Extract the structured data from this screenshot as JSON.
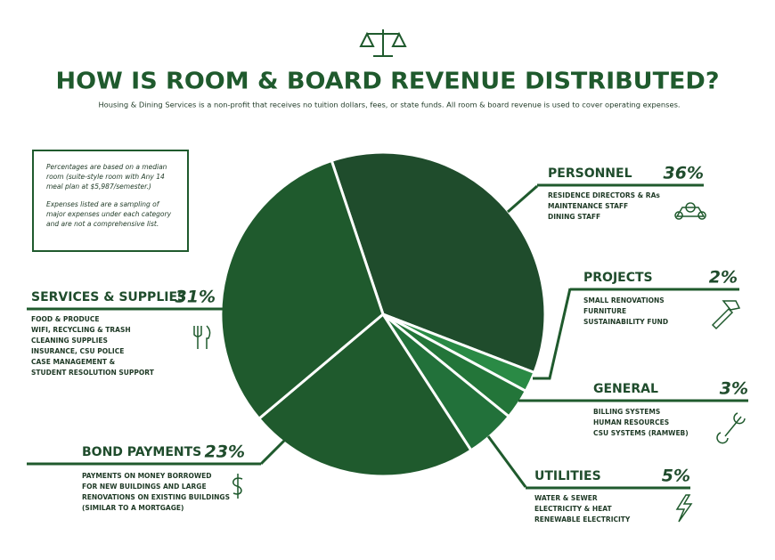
{
  "chart_data": {
    "type": "pie",
    "title": "HOW IS ROOM & BOARD REVENUE DISTRIBUTED?",
    "subtitle": "Housing & Dining Services is a non-profit that receives no tuition dollars, fees, or state funds. All room & board revenue is used to cover operating expenses.",
    "note": [
      "Percentages are based on a median room (suite-style room with Any 14 meal plan at $5,987/semester.)",
      "Expenses listed are a sampling of major expenses under each category and are not a comprehensive list."
    ],
    "categories": [
      "PERSONNEL",
      "PROJECTS",
      "GENERAL",
      "UTILITIES",
      "BOND PAYMENTS",
      "SERVICES & SUPPLIES"
    ],
    "values": [
      36,
      2,
      3,
      5,
      23,
      31
    ],
    "value_labels": [
      "36%",
      "2%",
      "3%",
      "5%",
      "23%",
      "31%"
    ],
    "colors": [
      "#1f4c2c",
      "#2a8a45",
      "#237539",
      "#22713a",
      "#1f5a2d",
      "#1f5a2d"
    ],
    "details": [
      [
        "RESIDENCE DIRECTORS & RAs",
        "MAINTENANCE STAFF",
        "DINING STAFF"
      ],
      [
        "SMALL RENOVATIONS",
        "FURNITURE",
        "SUSTAINABILITY FUND"
      ],
      [
        "BILLING SYSTEMS",
        "HUMAN RESOURCES",
        "CSU SYSTEMS (RAMWEB)"
      ],
      [
        "WATER & SEWER",
        "ELECTRICITY & HEAT",
        "RENEWABLE ELECTRICITY"
      ],
      [
        "PAYMENTS ON MONEY BORROWED",
        "FOR NEW BUILDINGS AND LARGE",
        "RENOVATIONS ON EXISTING BUILDINGS",
        "(SIMILAR TO A MORTGAGE)"
      ],
      [
        "FOOD & PRODUCE",
        "WIFI, RECYCLING & TRASH",
        "CLEANING SUPPLIES",
        "INSURANCE, CSU POLICE",
        "CASE MANAGEMENT &",
        "STUDENT RESOLUTION SUPPORT"
      ]
    ]
  }
}
